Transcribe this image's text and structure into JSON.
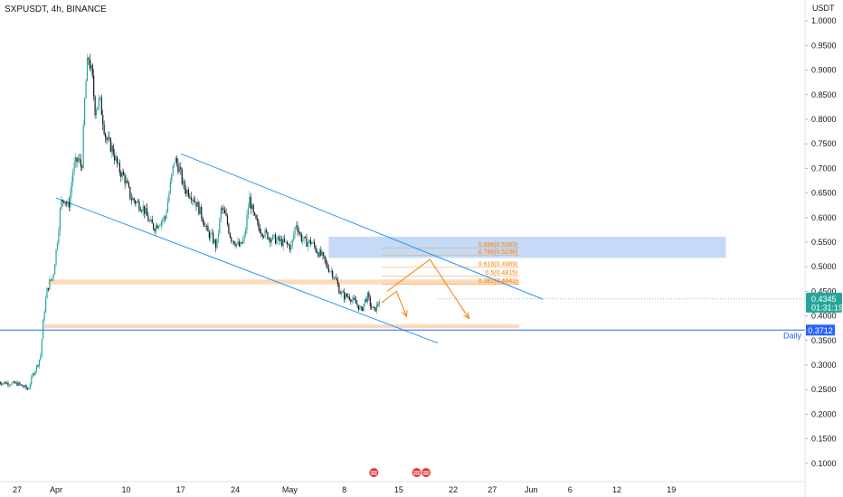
{
  "header": {
    "title": "SXPUSDT, 4h, BINANCE",
    "currency": "USDT"
  },
  "chart_data": {
    "type": "candlestick",
    "symbol": "SXPUSDT",
    "interval": "4h",
    "exchange": "BINANCE",
    "yaxis": {
      "ticks": [
        "1.0000",
        "0.9500",
        "0.9000",
        "0.8500",
        "0.8000",
        "0.7500",
        "0.7000",
        "0.6500",
        "0.6000",
        "0.5500",
        "0.5000",
        "0.4500",
        "0.4000",
        "0.3500",
        "0.3000",
        "0.2500",
        "0.2000",
        "0.1500",
        "0.1000"
      ],
      "ylim": [
        0.085,
        1.015
      ]
    },
    "xaxis": {
      "ticks": [
        {
          "label": "27",
          "d": 0
        },
        {
          "label": "Apr",
          "d": 5
        },
        {
          "label": "10",
          "d": 14
        },
        {
          "label": "17",
          "d": 21
        },
        {
          "label": "24",
          "d": 28
        },
        {
          "label": "May",
          "d": 35
        },
        {
          "label": "8",
          "d": 42
        },
        {
          "label": "15",
          "d": 49
        },
        {
          "label": "22",
          "d": 56
        },
        {
          "label": "27",
          "d": 61
        },
        {
          "label": "Jun",
          "d": 66
        },
        {
          "label": "6",
          "d": 71
        },
        {
          "label": "12",
          "d": 77
        },
        {
          "label": "19",
          "d": 84
        }
      ]
    },
    "price_path": [
      {
        "d": -2.5,
        "p": 0.265
      },
      {
        "d": -1.0,
        "p": 0.263
      },
      {
        "d": 0.0,
        "p": 0.262
      },
      {
        "d": 1.0,
        "p": 0.255
      },
      {
        "d": 1.4,
        "p": 0.25
      },
      {
        "d": 2.0,
        "p": 0.28
      },
      {
        "d": 2.6,
        "p": 0.3
      },
      {
        "d": 3.0,
        "p": 0.32
      },
      {
        "d": 3.4,
        "p": 0.4
      },
      {
        "d": 3.8,
        "p": 0.45
      },
      {
        "d": 4.2,
        "p": 0.47
      },
      {
        "d": 4.6,
        "p": 0.48
      },
      {
        "d": 5.2,
        "p": 0.56
      },
      {
        "d": 5.6,
        "p": 0.63
      },
      {
        "d": 6.0,
        "p": 0.64
      },
      {
        "d": 6.6,
        "p": 0.62
      },
      {
        "d": 7.2,
        "p": 0.7
      },
      {
        "d": 7.8,
        "p": 0.72
      },
      {
        "d": 8.3,
        "p": 0.7
      },
      {
        "d": 8.7,
        "p": 0.85
      },
      {
        "d": 9.1,
        "p": 0.93
      },
      {
        "d": 9.6,
        "p": 0.89
      },
      {
        "d": 10.0,
        "p": 0.82
      },
      {
        "d": 10.6,
        "p": 0.84
      },
      {
        "d": 11.4,
        "p": 0.76
      },
      {
        "d": 12.2,
        "p": 0.74
      },
      {
        "d": 13.0,
        "p": 0.7
      },
      {
        "d": 13.8,
        "p": 0.68
      },
      {
        "d": 14.6,
        "p": 0.64
      },
      {
        "d": 15.4,
        "p": 0.63
      },
      {
        "d": 16.2,
        "p": 0.62
      },
      {
        "d": 17.0,
        "p": 0.59
      },
      {
        "d": 17.6,
        "p": 0.58
      },
      {
        "d": 18.2,
        "p": 0.59
      },
      {
        "d": 19.0,
        "p": 0.6
      },
      {
        "d": 19.6,
        "p": 0.66
      },
      {
        "d": 20.2,
        "p": 0.72
      },
      {
        "d": 20.8,
        "p": 0.7
      },
      {
        "d": 21.4,
        "p": 0.66
      },
      {
        "d": 22.2,
        "p": 0.65
      },
      {
        "d": 23.0,
        "p": 0.63
      },
      {
        "d": 23.8,
        "p": 0.6
      },
      {
        "d": 24.4,
        "p": 0.57
      },
      {
        "d": 25.0,
        "p": 0.56
      },
      {
        "d": 25.6,
        "p": 0.54
      },
      {
        "d": 26.2,
        "p": 0.62
      },
      {
        "d": 26.8,
        "p": 0.6
      },
      {
        "d": 27.4,
        "p": 0.56
      },
      {
        "d": 28.0,
        "p": 0.55
      },
      {
        "d": 28.6,
        "p": 0.54
      },
      {
        "d": 29.2,
        "p": 0.56
      },
      {
        "d": 29.8,
        "p": 0.64
      },
      {
        "d": 30.4,
        "p": 0.6
      },
      {
        "d": 31.0,
        "p": 0.58
      },
      {
        "d": 31.6,
        "p": 0.57
      },
      {
        "d": 32.4,
        "p": 0.56
      },
      {
        "d": 33.2,
        "p": 0.555
      },
      {
        "d": 34.0,
        "p": 0.55
      },
      {
        "d": 34.6,
        "p": 0.545
      },
      {
        "d": 35.2,
        "p": 0.54
      },
      {
        "d": 35.8,
        "p": 0.59
      },
      {
        "d": 36.4,
        "p": 0.56
      },
      {
        "d": 37.0,
        "p": 0.55
      },
      {
        "d": 37.8,
        "p": 0.55
      },
      {
        "d": 38.6,
        "p": 0.53
      },
      {
        "d": 39.2,
        "p": 0.52
      },
      {
        "d": 39.8,
        "p": 0.5
      },
      {
        "d": 40.4,
        "p": 0.49
      },
      {
        "d": 41.0,
        "p": 0.47
      },
      {
        "d": 41.4,
        "p": 0.45
      },
      {
        "d": 42.0,
        "p": 0.44
      },
      {
        "d": 42.6,
        "p": 0.44
      },
      {
        "d": 43.2,
        "p": 0.43
      },
      {
        "d": 43.8,
        "p": 0.42
      },
      {
        "d": 44.2,
        "p": 0.41
      },
      {
        "d": 44.6,
        "p": 0.43
      },
      {
        "d": 45.0,
        "p": 0.44
      },
      {
        "d": 45.4,
        "p": 0.42
      },
      {
        "d": 45.8,
        "p": 0.41
      },
      {
        "d": 46.2,
        "p": 0.42
      },
      {
        "d": 46.6,
        "p": 0.435
      }
    ],
    "channel": {
      "upper": [
        {
          "d": 21.0,
          "p": 0.73
        },
        {
          "d": 67.5,
          "p": 0.434
        }
      ],
      "lower": [
        {
          "d": 5.0,
          "p": 0.64
        },
        {
          "d": 54.0,
          "p": 0.345
        }
      ],
      "color": "#2196f3"
    },
    "zones": [
      {
        "d0": 40.0,
        "d1": 91.0,
        "p0": 0.518,
        "p1": 0.561,
        "color": "#bbd3f5"
      },
      {
        "d0": 4.0,
        "d1": 64.5,
        "p0": 0.464,
        "p1": 0.474,
        "color": "#fbd5b2"
      },
      {
        "d0": 3.5,
        "d1": 64.5,
        "p0": 0.375,
        "p1": 0.383,
        "color": "#fbd5b2"
      }
    ],
    "fib_levels": [
      {
        "label": "0.886(0.5383)",
        "value": 0.5383
      },
      {
        "label": "0.786(0.5236)",
        "value": 0.5236
      },
      {
        "label": "0.618(0.4989)",
        "value": 0.4989
      },
      {
        "label": "0.5(0.4815)",
        "value": 0.4815
      },
      {
        "label": "0.382(0.4641)",
        "value": 0.4641
      }
    ],
    "fib_range_days": [
      46.8,
      64.5
    ],
    "projection_arrows": [
      [
        {
          "d": 46.8,
          "p": 0.427
        },
        {
          "d": 48.7,
          "p": 0.45
        },
        {
          "d": 50.0,
          "p": 0.399
        }
      ],
      [
        {
          "d": 47.5,
          "p": 0.45
        },
        {
          "d": 53.0,
          "p": 0.515
        },
        {
          "d": 58.0,
          "p": 0.395
        }
      ]
    ],
    "support_line": {
      "value": 0.3712,
      "label": "0.3712",
      "tag": "Daily"
    },
    "current_price": {
      "value": "0.4345",
      "countdown": "01:31:19"
    },
    "event_flag_days": [
      45.8,
      51.3,
      52.5
    ],
    "colors": {
      "up": "#26a69a",
      "down": "#131722",
      "orange": "#f57c00",
      "blue": "#2196f3",
      "price_bg": "#26a69a",
      "support_bg": "#2962ff"
    }
  }
}
